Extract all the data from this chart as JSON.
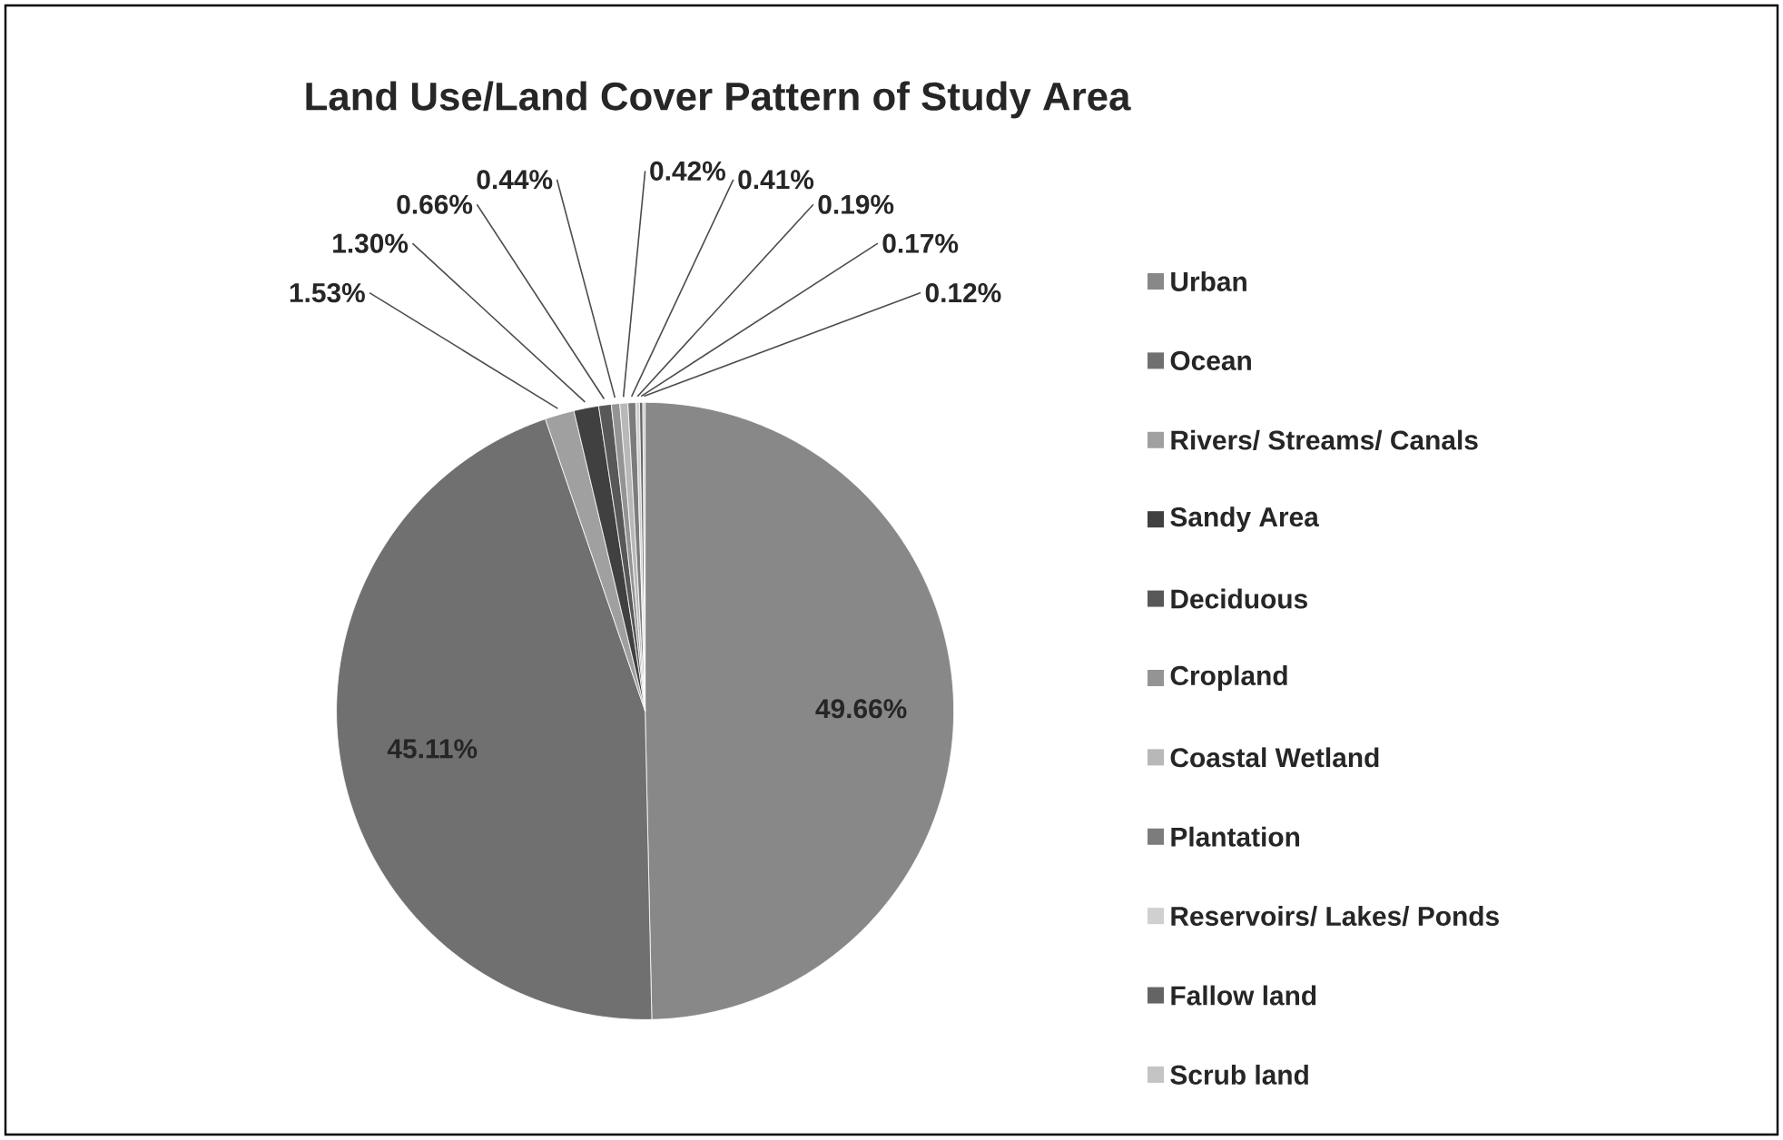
{
  "chart_data": {
    "type": "pie",
    "title": "Land Use/Land Cover Pattern of Study Area",
    "categories": [
      "Urban",
      "Ocean",
      "Rivers/ Streams/ Canals",
      "Sandy Area",
      "Deciduous",
      "Cropland",
      "Coastal Wetland",
      "Plantation",
      "Reservoirs/ Lakes/ Ponds",
      "Fallow land",
      "Scrub land"
    ],
    "values": [
      49.66,
      45.11,
      1.53,
      1.3,
      0.66,
      0.44,
      0.42,
      0.41,
      0.19,
      0.17,
      0.12
    ],
    "value_labels": [
      "49.66%",
      "45.11%",
      "1.53%",
      "1.30%",
      "0.66%",
      "0.44%",
      "0.42%",
      "0.41%",
      "0.19%",
      "0.17%",
      "0.12%"
    ],
    "colors": [
      "#888888",
      "#707070",
      "#a0a0a0",
      "#404040",
      "#585858",
      "#949494",
      "#b8b8b8",
      "#7c7c7c",
      "#d0d0d0",
      "#646464",
      "#c4c4c4"
    ],
    "legend": "right"
  }
}
